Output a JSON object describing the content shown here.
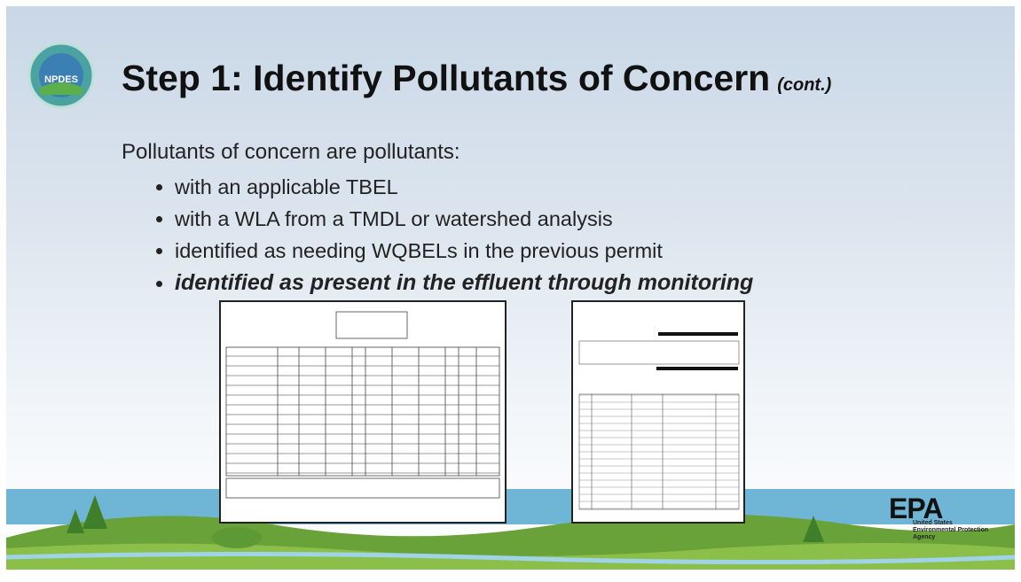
{
  "header": {
    "title": "Step 1: Identify Pollutants of Concern",
    "suffix": "(cont.)",
    "logo_text": "NPDES"
  },
  "body": {
    "intro": "Pollutants of concern are pollutants:",
    "bullets": [
      "with an applicable TBEL",
      "with a WLA from a TMDL or watershed analysis",
      "identified as needing WQBELs in the previous permit",
      "identified as present in the effluent through monitoring"
    ]
  },
  "footer": {
    "agency_mark": "EPA",
    "agency_name": [
      "United States",
      "Environmental Protection",
      "Agency"
    ]
  }
}
